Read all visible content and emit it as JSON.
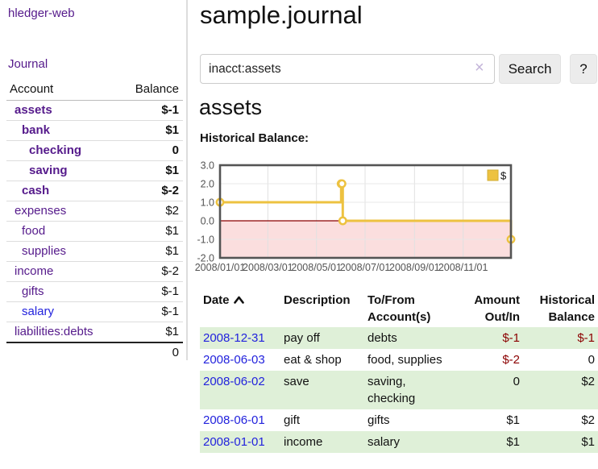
{
  "app": {
    "brand": "hledger-web",
    "nav_journal": "Journal"
  },
  "colors": {
    "link_purple": "#551a8b",
    "link_blue": "#2222dd",
    "negative_strong": "#8b0000",
    "negative_faded": "#bf8080",
    "row_highlight": "#dff0d8",
    "chart_line": "#edc240",
    "chart_negative_fill": "#fbdede",
    "chart_zero_line": "#8b0000",
    "chart_border": "#545454",
    "button_bg": "#ececec"
  },
  "sidebar": {
    "header": {
      "account": "Account",
      "balance": "Balance"
    },
    "accounts": [
      {
        "name": "assets",
        "balance": "$-1",
        "indent": 1,
        "bold": true
      },
      {
        "name": "bank",
        "balance": "$1",
        "indent": 2,
        "bold": true
      },
      {
        "name": "checking",
        "balance": "0",
        "indent": 3,
        "bold": true
      },
      {
        "name": "saving",
        "balance": "$1",
        "indent": 3,
        "bold": true
      },
      {
        "name": "cash",
        "balance": "$-2",
        "indent": 2,
        "bold": true
      },
      {
        "name": "expenses",
        "balance": "$2",
        "indent": 1,
        "bold": false
      },
      {
        "name": "food",
        "balance": "$1",
        "indent": 2,
        "bold": false
      },
      {
        "name": "supplies",
        "balance": "$1",
        "indent": 2,
        "bold": false
      },
      {
        "name": "income",
        "balance": "$-2",
        "indent": 1,
        "bold": false
      },
      {
        "name": "gifts",
        "balance": "$-1",
        "indent": 2,
        "bold": false
      },
      {
        "name": "salary",
        "balance": "$-1",
        "indent": 2,
        "bold": false,
        "visited": false
      },
      {
        "name": "liabilities:debts",
        "balance": "$1",
        "indent": 1,
        "bold": false
      }
    ],
    "total": "0"
  },
  "header": {
    "title": "sample.journal"
  },
  "search": {
    "value": "inacct:assets",
    "clear_icon": "×",
    "button_label": "Search",
    "help_label": "?"
  },
  "account_page": {
    "title": "assets",
    "chart_label": "Historical Balance:"
  },
  "chart_data": {
    "type": "line",
    "step": true,
    "title": "Historical Balance:",
    "series": [
      {
        "name": "$",
        "color": "#edc240",
        "points": [
          [
            "2008-01-01",
            1
          ],
          [
            "2008-06-01",
            2
          ],
          [
            "2008-06-02",
            2
          ],
          [
            "2008-06-03",
            0
          ],
          [
            "2008-12-31",
            -1
          ]
        ]
      }
    ],
    "xlim": [
      "2008-01-01",
      "2008-12-31"
    ],
    "ylim": [
      -2,
      3
    ],
    "x_tick_labels": [
      "2008/01/01",
      "2008/03/01",
      "2008/05/01",
      "2008/07/01",
      "2008/09/01",
      "2008/11/01"
    ],
    "y_tick_labels": [
      "3.0",
      "2.0",
      "1.0",
      "0.0",
      "-1.0",
      "-2.0"
    ],
    "grid": true,
    "legend_position": "top-right",
    "marker": "circle"
  },
  "register": {
    "columns": [
      "Date",
      "Description",
      "To/From Account(s)",
      "Amount Out/In",
      "Historical Balance"
    ],
    "sort": {
      "column": "Date",
      "direction": "ascending"
    },
    "rows": [
      {
        "date": "2008-12-31",
        "description": "pay off",
        "accounts": "debts",
        "amount": "$-1",
        "balance": "$-1"
      },
      {
        "date": "2008-06-03",
        "description": "eat & shop",
        "accounts": "food, supplies",
        "amount": "$-2",
        "balance": "0"
      },
      {
        "date": "2008-06-02",
        "description": "save",
        "accounts": "saving, checking",
        "amount": "0",
        "balance": "$2"
      },
      {
        "date": "2008-06-01",
        "description": "gift",
        "accounts": "gifts",
        "amount": "$1",
        "balance": "$2"
      },
      {
        "date": "2008-01-01",
        "description": "income",
        "accounts": "salary",
        "amount": "$1",
        "balance": "$1"
      }
    ]
  }
}
